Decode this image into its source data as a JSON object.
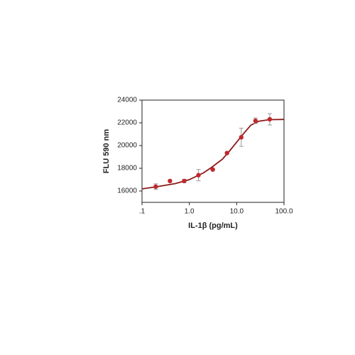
{
  "chart_data": {
    "type": "scatter",
    "x_label": "IL-1β (pg/mL)",
    "y_label": "FLU 590 nm",
    "x": [
      0.195,
      0.39,
      0.78,
      1.56,
      3.125,
      6.25,
      12.5,
      25,
      50
    ],
    "values": [
      16380,
      16880,
      16880,
      17390,
      17890,
      19340,
      20730,
      22180,
      22310
    ],
    "errors": [
      250,
      0,
      150,
      500,
      0,
      0,
      800,
      250,
      500
    ],
    "color": "#c0282d",
    "error_color": "#999999",
    "fit": {
      "type": "line",
      "color": "#8b1a1a",
      "x": [
        0.1,
        0.2,
        0.5,
        1,
        2,
        3,
        5,
        7,
        10,
        15,
        20,
        30,
        50,
        100
      ],
      "values": [
        16190,
        16370,
        16650,
        17000,
        17600,
        18100,
        18800,
        19500,
        20300,
        21200,
        21800,
        22150,
        22280,
        22300
      ]
    },
    "xscale": "log",
    "xlim": [
      0.1,
      100
    ],
    "xticks": [
      {
        "value": 0.1,
        "label": ".1"
      },
      {
        "value": 1,
        "label": "1.0"
      },
      {
        "value": 10,
        "label": "10.0"
      },
      {
        "value": 100,
        "label": "100.0"
      }
    ],
    "ylim": [
      15000,
      24000
    ],
    "yticks": [
      16000,
      18000,
      20000,
      22000,
      24000
    ]
  }
}
